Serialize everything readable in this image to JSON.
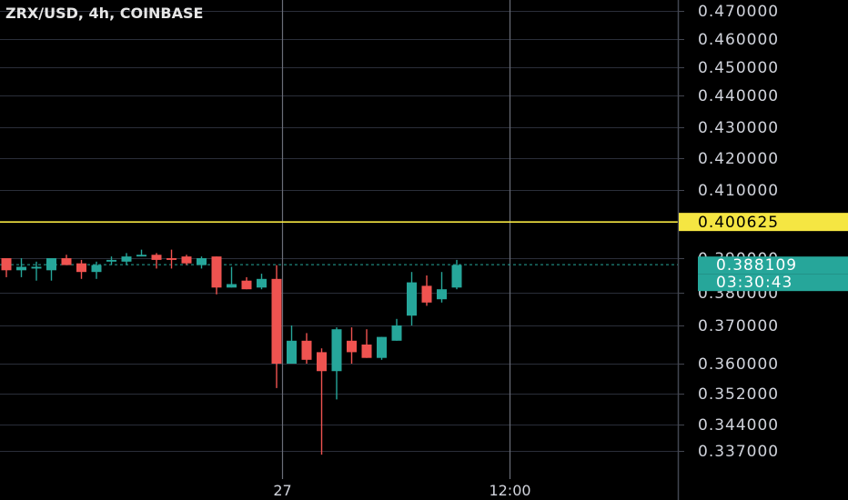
{
  "chart_data": {
    "type": "candlestick",
    "title": "ZRX/USD, 4h, COINBASE",
    "symbol": "ZRX/USD",
    "interval": "4h",
    "exchange": "COINBASE",
    "y_ticks": [
      {
        "value": 0.47,
        "label": "0.470000"
      },
      {
        "value": 0.46,
        "label": "0.460000"
      },
      {
        "value": 0.45,
        "label": "0.450000"
      },
      {
        "value": 0.44,
        "label": "0.440000"
      },
      {
        "value": 0.43,
        "label": "0.430000"
      },
      {
        "value": 0.42,
        "label": "0.420000"
      },
      {
        "value": 0.41,
        "label": "0.410000"
      },
      {
        "value": 0.39,
        "label": "0.390000"
      },
      {
        "value": 0.38,
        "label": "0.380000"
      },
      {
        "value": 0.37,
        "label": "0.370000"
      },
      {
        "value": 0.36,
        "label": "0.360000"
      },
      {
        "value": 0.352,
        "label": "0.352000"
      },
      {
        "value": 0.344,
        "label": "0.344000"
      },
      {
        "value": 0.337,
        "label": "0.337000"
      }
    ],
    "x_ticks": [
      {
        "bar": 18.35,
        "label": "27"
      },
      {
        "bar": 33.5,
        "label": "12:00"
      }
    ],
    "ohlc": [
      {
        "o": 0.39,
        "h": 0.39,
        "l": 0.3845,
        "c": 0.3865
      },
      {
        "o": 0.3865,
        "h": 0.39,
        "l": 0.3845,
        "c": 0.3875
      },
      {
        "o": 0.387,
        "h": 0.389,
        "l": 0.3835,
        "c": 0.3875
      },
      {
        "o": 0.3865,
        "h": 0.39,
        "l": 0.3835,
        "c": 0.39
      },
      {
        "o": 0.39,
        "h": 0.391,
        "l": 0.388,
        "c": 0.388
      },
      {
        "o": 0.3885,
        "h": 0.3895,
        "l": 0.384,
        "c": 0.386
      },
      {
        "o": 0.386,
        "h": 0.389,
        "l": 0.384,
        "c": 0.388
      },
      {
        "o": 0.389,
        "h": 0.3905,
        "l": 0.388,
        "c": 0.3895
      },
      {
        "o": 0.389,
        "h": 0.3915,
        "l": 0.388,
        "c": 0.3905
      },
      {
        "o": 0.3905,
        "h": 0.3925,
        "l": 0.3905,
        "c": 0.391
      },
      {
        "o": 0.391,
        "h": 0.3915,
        "l": 0.387,
        "c": 0.3895
      },
      {
        "o": 0.39,
        "h": 0.3925,
        "l": 0.387,
        "c": 0.3895
      },
      {
        "o": 0.3905,
        "h": 0.391,
        "l": 0.388,
        "c": 0.3885
      },
      {
        "o": 0.388,
        "h": 0.3905,
        "l": 0.387,
        "c": 0.39
      },
      {
        "o": 0.3905,
        "h": 0.3905,
        "l": 0.3795,
        "c": 0.3815
      },
      {
        "o": 0.3815,
        "h": 0.3875,
        "l": 0.3815,
        "c": 0.3825
      },
      {
        "o": 0.3835,
        "h": 0.3845,
        "l": 0.381,
        "c": 0.381
      },
      {
        "o": 0.3815,
        "h": 0.3855,
        "l": 0.381,
        "c": 0.384
      },
      {
        "o": 0.384,
        "h": 0.388,
        "l": 0.3535,
        "c": 0.36
      },
      {
        "o": 0.36,
        "h": 0.37,
        "l": 0.36,
        "c": 0.366
      },
      {
        "o": 0.366,
        "h": 0.368,
        "l": 0.36,
        "c": 0.361
      },
      {
        "o": 0.363,
        "h": 0.364,
        "l": 0.336,
        "c": 0.358
      },
      {
        "o": 0.358,
        "h": 0.3695,
        "l": 0.3505,
        "c": 0.369
      },
      {
        "o": 0.366,
        "h": 0.3695,
        "l": 0.36,
        "c": 0.363
      },
      {
        "o": 0.365,
        "h": 0.369,
        "l": 0.3615,
        "c": 0.3615
      },
      {
        "o": 0.3615,
        "h": 0.367,
        "l": 0.361,
        "c": 0.367
      },
      {
        "o": 0.366,
        "h": 0.372,
        "l": 0.366,
        "c": 0.37
      },
      {
        "o": 0.373,
        "h": 0.386,
        "l": 0.37,
        "c": 0.383
      },
      {
        "o": 0.382,
        "h": 0.385,
        "l": 0.376,
        "c": 0.377
      },
      {
        "o": 0.378,
        "h": 0.386,
        "l": 0.377,
        "c": 0.381
      },
      {
        "o": 0.3815,
        "h": 0.3895,
        "l": 0.381,
        "c": 0.388
      }
    ],
    "horizontal_line": {
      "value": 0.400625,
      "label": "0.400625",
      "color": "#f5e642"
    },
    "last_price": {
      "value": 0.388109,
      "label": "0.388109",
      "countdown": "03:30:43",
      "color": "#26a69a"
    },
    "up_color": "#26a69a",
    "down_color": "#ef5350",
    "grid": true,
    "grid_color": "#2a2e39",
    "axis_color": "#434651",
    "crosshair_color": "#6a6d78",
    "background": "#000000"
  }
}
